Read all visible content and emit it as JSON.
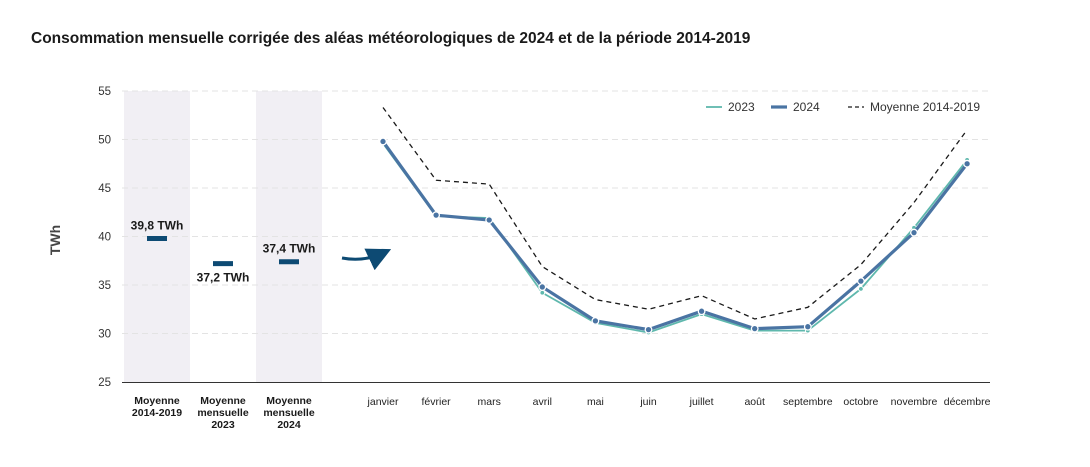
{
  "chart_data": {
    "type": "line",
    "title": "Consommation mensuelle corrigée des aléas météorologiques de 2024 et de la période 2014-2019",
    "ylabel": "TWh",
    "ylim": [
      25,
      55
    ],
    "yticks": [
      25,
      30,
      35,
      40,
      45,
      50,
      55
    ],
    "grid": "horizontal dashed",
    "legend_position": "top-right",
    "averages": [
      {
        "label_lines": [
          "Moyenne",
          "2014-2019"
        ],
        "value": 39.8,
        "value_label": "39,8 TWh",
        "color": "#0d4a73",
        "shaded": true
      },
      {
        "label_lines": [
          "Moyenne",
          "mensuelle",
          "2023"
        ],
        "value": 37.2,
        "value_label": "37,2 TWh",
        "color": "#0d4a73",
        "shaded": false
      },
      {
        "label_lines": [
          "Moyenne",
          "mensuelle",
          "2024"
        ],
        "value": 37.4,
        "value_label": "37,4 TWh",
        "color": "#0d4a73",
        "shaded": true
      }
    ],
    "categories": [
      "janvier",
      "février",
      "mars",
      "avril",
      "mai",
      "juin",
      "juillet",
      "août",
      "septembre",
      "octobre",
      "novembre",
      "décembre"
    ],
    "series": [
      {
        "name": "2023",
        "color": "#5fb8ad",
        "values": [
          49.6,
          42.1,
          41.9,
          34.2,
          31.1,
          30.1,
          32.0,
          30.3,
          30.3,
          34.6,
          40.9,
          47.9
        ]
      },
      {
        "name": "2024",
        "color": "#4a74a3",
        "values": [
          49.8,
          42.2,
          41.7,
          34.8,
          31.3,
          30.4,
          32.3,
          30.5,
          30.7,
          35.4,
          40.4,
          47.5
        ]
      },
      {
        "name": "Moyenne 2014-2019",
        "color": "#1a1a1a",
        "dashed": true,
        "values": [
          53.3,
          45.8,
          45.4,
          36.9,
          33.5,
          32.5,
          33.9,
          31.5,
          32.7,
          37.1,
          43.5,
          51.0
        ]
      }
    ]
  }
}
